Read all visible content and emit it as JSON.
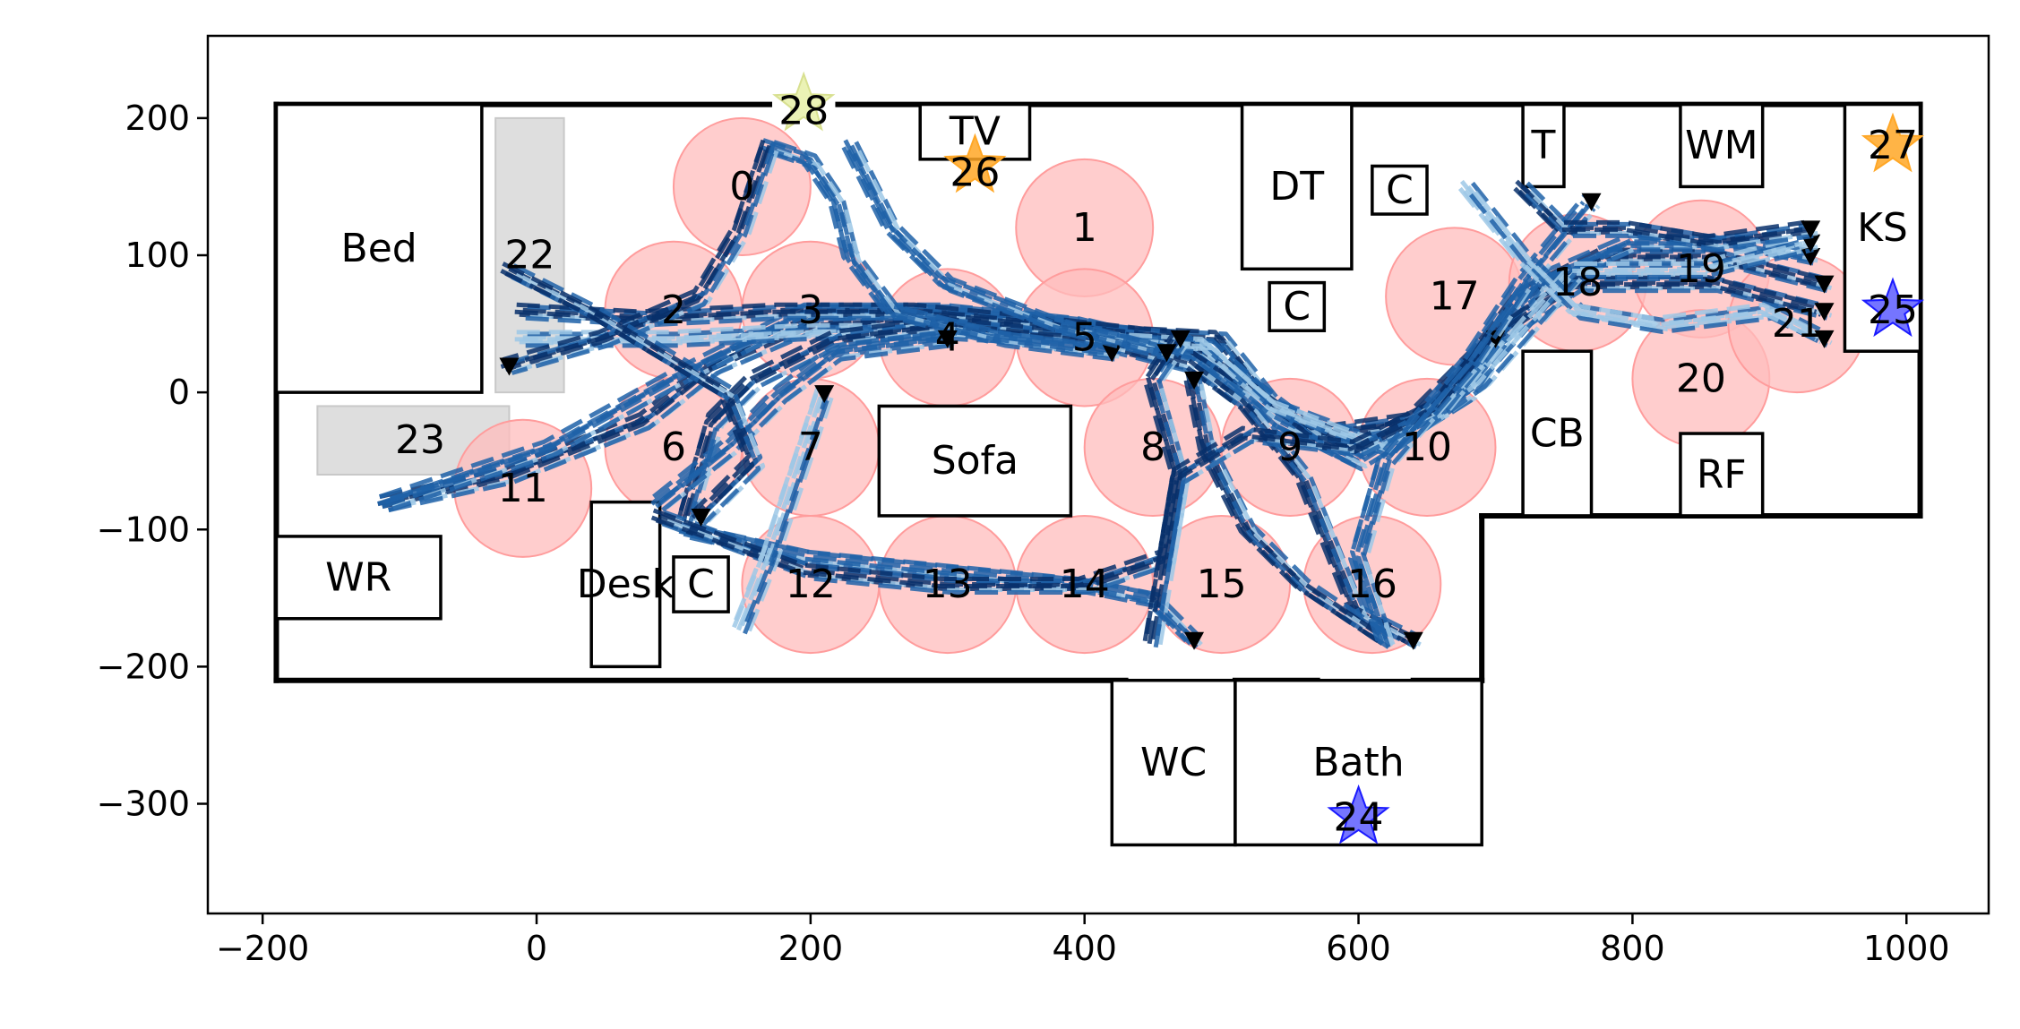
{
  "chart_data": {
    "type": "scatter",
    "title": "",
    "xlabel": "",
    "ylabel": "",
    "xlim": [
      -240,
      1060
    ],
    "ylim": [
      -380,
      260
    ],
    "xticks": [
      -200,
      0,
      200,
      400,
      600,
      800,
      1000
    ],
    "yticks": [
      -300,
      -200,
      -100,
      0,
      100,
      200
    ],
    "xtick_labels": [
      "−200",
      "0",
      "200",
      "400",
      "600",
      "800",
      "1000"
    ],
    "ytick_labels": [
      "−300",
      "−200",
      "−100",
      "0",
      "100",
      "200"
    ],
    "grid": false,
    "colors": {
      "waypoint_fill": "#ffbcbc",
      "waypoint_edge": "#ff9c9c",
      "trajectory_dark": "#08306b",
      "trajectory_mid": "#1f62a8",
      "trajectory_light": "#9ec8e6",
      "start_star": "#ffa726",
      "goal_star": "#3a3aff",
      "marker_28": "#e8f0a8"
    },
    "waypoints": [
      {
        "label": "0",
        "x": 150,
        "y": 150,
        "r": 50
      },
      {
        "label": "1",
        "x": 400,
        "y": 120,
        "r": 50
      },
      {
        "label": "2",
        "x": 100,
        "y": 60,
        "r": 50
      },
      {
        "label": "3",
        "x": 200,
        "y": 60,
        "r": 50
      },
      {
        "label": "4",
        "x": 300,
        "y": 40,
        "r": 50
      },
      {
        "label": "5",
        "x": 400,
        "y": 40,
        "r": 50
      },
      {
        "label": "6",
        "x": 100,
        "y": -40,
        "r": 50
      },
      {
        "label": "7",
        "x": 200,
        "y": -40,
        "r": 50
      },
      {
        "label": "8",
        "x": 450,
        "y": -40,
        "r": 50
      },
      {
        "label": "9",
        "x": 550,
        "y": -40,
        "r": 50
      },
      {
        "label": "10",
        "x": 650,
        "y": -40,
        "r": 50
      },
      {
        "label": "11",
        "x": -10,
        "y": -70,
        "r": 50
      },
      {
        "label": "12",
        "x": 200,
        "y": -140,
        "r": 50
      },
      {
        "label": "13",
        "x": 300,
        "y": -140,
        "r": 50
      },
      {
        "label": "14",
        "x": 400,
        "y": -140,
        "r": 50
      },
      {
        "label": "15",
        "x": 500,
        "y": -140,
        "r": 50
      },
      {
        "label": "16",
        "x": 610,
        "y": -140,
        "r": 50
      },
      {
        "label": "17",
        "x": 670,
        "y": 70,
        "r": 50
      },
      {
        "label": "18",
        "x": 760,
        "y": 80,
        "r": 50
      },
      {
        "label": "19",
        "x": 850,
        "y": 90,
        "r": 50
      },
      {
        "label": "20",
        "x": 850,
        "y": 10,
        "r": 50
      },
      {
        "label": "21",
        "x": 920,
        "y": 50,
        "r": 50
      }
    ],
    "point_labels": [
      {
        "label": "22",
        "x": -5,
        "y": 100
      },
      {
        "label": "23",
        "x": -85,
        "y": -35
      },
      {
        "label": "24",
        "x": 600,
        "y": -310
      },
      {
        "label": "25",
        "x": 990,
        "y": 60
      },
      {
        "label": "26",
        "x": 320,
        "y": 160
      },
      {
        "label": "27",
        "x": 990,
        "y": 180
      },
      {
        "label": "28",
        "x": 195,
        "y": 205
      }
    ],
    "star_markers": [
      {
        "x": 320,
        "y": 165,
        "kind": "start"
      },
      {
        "x": 990,
        "y": 180,
        "kind": "start"
      },
      {
        "x": 600,
        "y": -310,
        "kind": "goal"
      },
      {
        "x": 990,
        "y": 60,
        "kind": "goal"
      },
      {
        "x": 195,
        "y": 210,
        "kind": "marker"
      }
    ],
    "furniture": [
      {
        "label": "Bed",
        "x1": -190,
        "y1": 0,
        "x2": -40,
        "y2": 210
      },
      {
        "label": "TV",
        "x1": 280,
        "y1": 170,
        "x2": 360,
        "y2": 210
      },
      {
        "label": "DT",
        "x1": 515,
        "y1": 90,
        "x2": 595,
        "y2": 210
      },
      {
        "label": "C",
        "x1": 610,
        "y1": 130,
        "x2": 650,
        "y2": 165
      },
      {
        "label": "C",
        "x1": 535,
        "y1": 45,
        "x2": 575,
        "y2": 80
      },
      {
        "label": "T",
        "x1": 720,
        "y1": 150,
        "x2": 750,
        "y2": 210
      },
      {
        "label": "WM",
        "x1": 835,
        "y1": 150,
        "x2": 895,
        "y2": 210
      },
      {
        "label": "KS",
        "x1": 955,
        "y1": 30,
        "x2": 1010,
        "y2": 210
      },
      {
        "label": "Sofa",
        "x1": 250,
        "y1": -90,
        "x2": 390,
        "y2": -10
      },
      {
        "label": "CB",
        "x1": 720,
        "y1": -90,
        "x2": 770,
        "y2": 30
      },
      {
        "label": "RF",
        "x1": 835,
        "y1": -90,
        "x2": 895,
        "y2": -30
      },
      {
        "label": "WR",
        "x1": -190,
        "y1": -165,
        "x2": -70,
        "y2": -105
      },
      {
        "label": "Desk",
        "x1": 40,
        "y1": -200,
        "x2": 90,
        "y2": -80
      },
      {
        "label": "C",
        "x1": 100,
        "y1": -160,
        "x2": 140,
        "y2": -120
      },
      {
        "label": "WC",
        "x1": 420,
        "y1": -330,
        "x2": 510,
        "y2": -210
      },
      {
        "label": "Bath",
        "x1": 510,
        "y1": -330,
        "x2": 690,
        "y2": -210
      }
    ],
    "gray_zones": [
      {
        "x1": -30,
        "y1": 0,
        "x2": 20,
        "y2": 200
      },
      {
        "x1": -160,
        "y1": -60,
        "x2": -20,
        "y2": -10
      }
    ],
    "walls": [
      [
        [
          -190,
          210
        ],
        [
          170,
          210
        ]
      ],
      [
        [
          220,
          210
        ],
        [
          1010,
          210
        ]
      ],
      [
        [
          1010,
          210
        ],
        [
          1010,
          -90
        ]
      ],
      [
        [
          1010,
          -90
        ],
        [
          690,
          -90
        ]
      ],
      [
        [
          690,
          -90
        ],
        [
          690,
          -210
        ]
      ],
      [
        [
          -190,
          210
        ],
        [
          -190,
          -210
        ]
      ],
      [
        [
          -190,
          -210
        ],
        [
          430,
          -210
        ]
      ],
      [
        [
          510,
          -210
        ],
        [
          570,
          -210
        ]
      ],
      [
        [
          640,
          -210
        ],
        [
          690,
          -210
        ]
      ]
    ],
    "trajectories": [
      {
        "name": "",
        "shade": "dark",
        "points": [
          [
            -110,
            -80
          ],
          [
            -20,
            -60
          ],
          [
            80,
            -20
          ],
          [
            130,
            20
          ],
          [
            200,
            50
          ],
          [
            300,
            55
          ],
          [
            400,
            45
          ],
          [
            500,
            40
          ],
          [
            540,
            -10
          ],
          [
            600,
            -40
          ],
          [
            660,
            -10
          ],
          [
            720,
            70
          ],
          [
            780,
            100
          ],
          [
            860,
            100
          ],
          [
            940,
            80
          ]
        ]
      },
      {
        "name": "",
        "shade": "mid",
        "points": [
          [
            -110,
            -80
          ],
          [
            10,
            -40
          ],
          [
            100,
            10
          ],
          [
            200,
            60
          ],
          [
            300,
            60
          ],
          [
            400,
            50
          ],
          [
            480,
            30
          ],
          [
            540,
            -20
          ],
          [
            600,
            -50
          ],
          [
            680,
            0
          ],
          [
            730,
            80
          ],
          [
            800,
            110
          ],
          [
            880,
            110
          ],
          [
            930,
            100
          ]
        ]
      },
      {
        "name": "",
        "shade": "dark",
        "points": [
          [
            -10,
            60
          ],
          [
            80,
            55
          ],
          [
            180,
            60
          ],
          [
            280,
            60
          ],
          [
            380,
            50
          ],
          [
            470,
            40
          ],
          [
            530,
            0
          ],
          [
            570,
            -30
          ],
          [
            640,
            -20
          ],
          [
            700,
            40
          ],
          [
            760,
            80
          ],
          [
            860,
            80
          ],
          [
            940,
            60
          ]
        ]
      },
      {
        "name": "",
        "shade": "light",
        "points": [
          [
            -10,
            40
          ],
          [
            100,
            40
          ],
          [
            200,
            45
          ],
          [
            300,
            45
          ],
          [
            400,
            40
          ],
          [
            490,
            35
          ],
          [
            540,
            -10
          ],
          [
            620,
            -40
          ],
          [
            690,
            10
          ],
          [
            760,
            90
          ],
          [
            850,
            90
          ],
          [
            930,
            110
          ]
        ]
      },
      {
        "name": "",
        "shade": "dark",
        "points": [
          [
            110,
            -90
          ],
          [
            130,
            -20
          ],
          [
            160,
            10
          ],
          [
            220,
            40
          ],
          [
            300,
            50
          ],
          [
            400,
            40
          ],
          [
            480,
            20
          ],
          [
            520,
            -10
          ],
          [
            560,
            -60
          ],
          [
            600,
            -160
          ],
          [
            640,
            -180
          ]
        ]
      },
      {
        "name": "",
        "shade": "mid",
        "points": [
          [
            110,
            -100
          ],
          [
            200,
            -120
          ],
          [
            300,
            -130
          ],
          [
            400,
            -140
          ],
          [
            450,
            -150
          ],
          [
            480,
            -180
          ]
        ]
      },
      {
        "name": "",
        "shade": "dark",
        "points": [
          [
            90,
            -90
          ],
          [
            200,
            -130
          ],
          [
            300,
            -140
          ],
          [
            400,
            -140
          ],
          [
            460,
            -120
          ],
          [
            470,
            -60
          ],
          [
            450,
            10
          ],
          [
            470,
            40
          ]
        ]
      },
      {
        "name": "",
        "shade": "mid",
        "points": [
          [
            170,
            180
          ],
          [
            200,
            170
          ],
          [
            220,
            140
          ],
          [
            230,
            100
          ],
          [
            260,
            60
          ],
          [
            340,
            40
          ],
          [
            420,
            30
          ]
        ]
      },
      {
        "name": "",
        "shade": "dark",
        "points": [
          [
            170,
            180
          ],
          [
            150,
            120
          ],
          [
            120,
            70
          ],
          [
            50,
            40
          ],
          [
            -20,
            20
          ]
        ]
      },
      {
        "name": "",
        "shade": "mid",
        "points": [
          [
            230,
            180
          ],
          [
            260,
            120
          ],
          [
            300,
            80
          ],
          [
            380,
            50
          ],
          [
            460,
            30
          ]
        ]
      },
      {
        "name": "",
        "shade": "dark",
        "points": [
          [
            620,
            -180
          ],
          [
            560,
            -140
          ],
          [
            520,
            -100
          ],
          [
            490,
            -40
          ],
          [
            480,
            10
          ]
        ]
      },
      {
        "name": "",
        "shade": "dark",
        "points": [
          [
            450,
            -180
          ],
          [
            460,
            -120
          ],
          [
            470,
            -60
          ],
          [
            520,
            -30
          ],
          [
            600,
            -40
          ],
          [
            660,
            -10
          ],
          [
            700,
            40
          ]
        ]
      },
      {
        "name": "",
        "shade": "mid",
        "points": [
          [
            620,
            -180
          ],
          [
            600,
            -120
          ],
          [
            620,
            -50
          ],
          [
            680,
            20
          ],
          [
            720,
            80
          ],
          [
            770,
            140
          ]
        ]
      },
      {
        "name": "",
        "shade": "light",
        "points": [
          [
            680,
            150
          ],
          [
            720,
            100
          ],
          [
            760,
            60
          ],
          [
            820,
            50
          ],
          [
            900,
            60
          ],
          [
            940,
            40
          ]
        ]
      },
      {
        "name": "",
        "shade": "dark",
        "points": [
          [
            720,
            150
          ],
          [
            750,
            120
          ],
          [
            800,
            120
          ],
          [
            860,
            110
          ],
          [
            930,
            120
          ]
        ]
      },
      {
        "name": "",
        "shade": "mid",
        "points": [
          [
            90,
            -80
          ],
          [
            140,
            -40
          ],
          [
            180,
            0
          ],
          [
            220,
            30
          ],
          [
            300,
            40
          ]
        ]
      },
      {
        "name": "",
        "shade": "light",
        "points": [
          [
            150,
            -170
          ],
          [
            170,
            -120
          ],
          [
            190,
            -60
          ],
          [
            210,
            0
          ]
        ]
      },
      {
        "name": "",
        "shade": "dark",
        "points": [
          [
            -20,
            90
          ],
          [
            40,
            60
          ],
          [
            90,
            30
          ],
          [
            140,
            0
          ],
          [
            160,
            -50
          ],
          [
            120,
            -90
          ]
        ]
      }
    ]
  }
}
